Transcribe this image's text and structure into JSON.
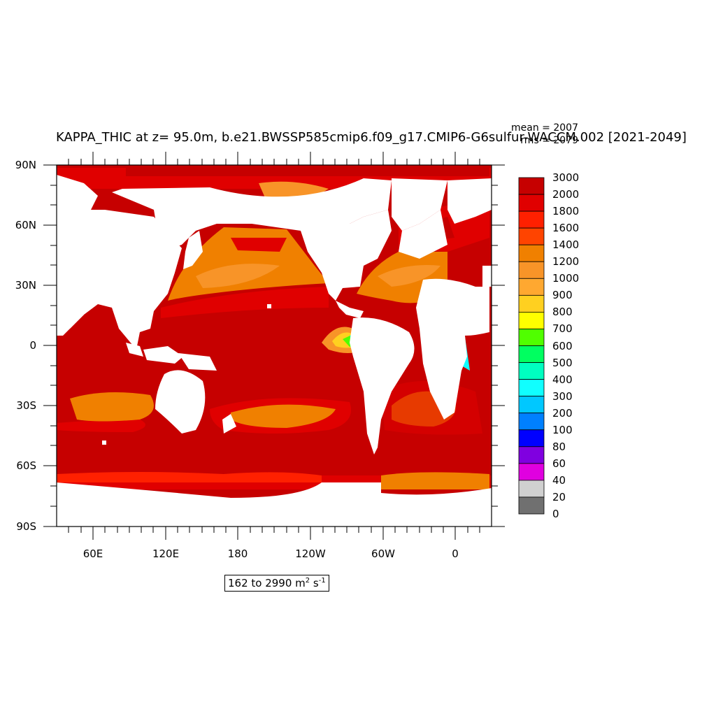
{
  "title": "KAPPA_THIC at z=  95.0m, b.e21.BWSSP585cmip6.f09_g17.CMIP6-G6sulfur-WACCM.002 [2021-2049]",
  "stats": {
    "mean": "mean = 2007",
    "rms": "rms = 2079"
  },
  "range": {
    "text": "162 to 2990 m",
    "unit_sup1": "2",
    "unit_mid": " s",
    "unit_sup2": "-1"
  },
  "lat_labels": [
    "90N",
    "60N",
    "30N",
    "0",
    "30S",
    "60S",
    "90S"
  ],
  "lon_labels": [
    "60E",
    "120E",
    "180",
    "120W",
    "60W",
    "0"
  ],
  "colorbar": {
    "labels": [
      "3000",
      "2000",
      "1800",
      "1600",
      "1400",
      "1200",
      "1000",
      "900",
      "800",
      "700",
      "600",
      "500",
      "400",
      "300",
      "200",
      "100",
      "80",
      "60",
      "40",
      "20",
      "0"
    ],
    "colors": [
      "#c60000",
      "#e00000",
      "#ff2000",
      "#ff4400",
      "#f08000",
      "#f89428",
      "#ffa830",
      "#ffd020",
      "#ffff00",
      "#50ff00",
      "#00ff60",
      "#00ffc0",
      "#10ffff",
      "#00c8ff",
      "#0080ff",
      "#0000ff",
      "#8000e0",
      "#e000e0",
      "#d0d0d0",
      "#707070"
    ]
  }
}
